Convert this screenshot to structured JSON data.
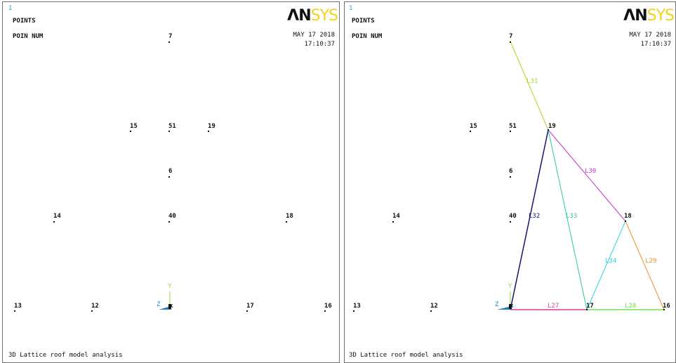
{
  "colors": {
    "triad_y": "#9fd43a",
    "triad_z": "#1a7fc8",
    "logo_an": "#111111",
    "logo_sys": "#f2d21a",
    "window_number": "#1aa8c8"
  },
  "left": {
    "window_number": "1",
    "plot_type": "POINTS",
    "numbering": "POIN NUM",
    "logo_an": "ΛN",
    "logo_sys": "SYS",
    "date": "MAY 17 2018",
    "time": "17:10:37",
    "caption": "3D Lattice roof model analysis",
    "triad_y": "Y",
    "triad_z": "Z",
    "triad_x": "X",
    "keypoints": {
      "kp7": "7",
      "kp15": "15",
      "kp51": "51",
      "kp19": "19",
      "kp6": "6",
      "kp14": "14",
      "kp40": "40",
      "kp18": "18",
      "kp13": "13",
      "kp12": "12",
      "kp17": "17",
      "kp16": "16"
    }
  },
  "right": {
    "window_number": "1",
    "plot_type": "POINTS",
    "numbering": "POIN NUM",
    "logo_an": "ΛN",
    "logo_sys": "SYS",
    "date": "MAY 17 2018",
    "time": "17:10:37",
    "caption": "3D Lattice roof model analysis",
    "triad_y": "Y",
    "triad_z": "Z",
    "triad_x": "X",
    "keypoints": {
      "kp7": "7",
      "kp15": "15",
      "kp51": "51",
      "kp19": "19",
      "kp6": "6",
      "kp14": "14",
      "kp40": "40",
      "kp18": "18",
      "kp13": "13",
      "kp12": "12",
      "kp17": "17",
      "kp16": "16"
    },
    "lines": [
      {
        "label": "L31",
        "color": "#a6d81e"
      },
      {
        "label": "L30",
        "color": "#c832c8"
      },
      {
        "label": "L32",
        "color": "#141478"
      },
      {
        "label": "L33",
        "color": "#28c8a0"
      },
      {
        "label": "L34",
        "color": "#28d2e6"
      },
      {
        "label": "L29",
        "color": "#f08c28"
      },
      {
        "label": "L27",
        "color": "#e03ca0"
      },
      {
        "label": "L28",
        "color": "#6ee048"
      }
    ]
  }
}
